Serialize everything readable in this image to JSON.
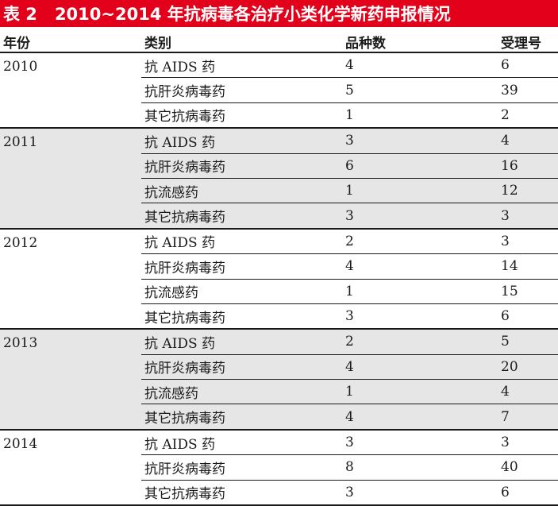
{
  "title": {
    "label": "表 2",
    "text": "2010~2014 年抗病毒各治疗小类化学新药申报情况"
  },
  "headers": {
    "year": "年份",
    "category": "类别",
    "varieties": "品种数",
    "acceptance": "受理号"
  },
  "groups": [
    {
      "year": "2010",
      "rows": [
        {
          "category": "抗 AIDS 药",
          "varieties": "4",
          "acceptance": "6"
        },
        {
          "category": "抗肝炎病毒药",
          "varieties": "5",
          "acceptance": "39"
        },
        {
          "category": "其它抗病毒药",
          "varieties": "1",
          "acceptance": "2"
        }
      ]
    },
    {
      "year": "2011",
      "rows": [
        {
          "category": "抗 AIDS 药",
          "varieties": "3",
          "acceptance": "4"
        },
        {
          "category": "抗肝炎病毒药",
          "varieties": "6",
          "acceptance": "16"
        },
        {
          "category": "抗流感药",
          "varieties": "1",
          "acceptance": "12"
        },
        {
          "category": "其它抗病毒药",
          "varieties": "3",
          "acceptance": "3"
        }
      ]
    },
    {
      "year": "2012",
      "rows": [
        {
          "category": "抗 AIDS 药",
          "varieties": "2",
          "acceptance": "3"
        },
        {
          "category": "抗肝炎病毒药",
          "varieties": "4",
          "acceptance": "14"
        },
        {
          "category": "抗流感药",
          "varieties": "1",
          "acceptance": "15"
        },
        {
          "category": "其它抗病毒药",
          "varieties": "3",
          "acceptance": "6"
        }
      ]
    },
    {
      "year": "2013",
      "rows": [
        {
          "category": "抗 AIDS 药",
          "varieties": "2",
          "acceptance": "5"
        },
        {
          "category": "抗肝炎病毒药",
          "varieties": "4",
          "acceptance": "20"
        },
        {
          "category": "抗流感药",
          "varieties": "1",
          "acceptance": "4"
        },
        {
          "category": "其它抗病毒药",
          "varieties": "4",
          "acceptance": "7"
        }
      ]
    },
    {
      "year": "2014",
      "rows": [
        {
          "category": "抗 AIDS 药",
          "varieties": "3",
          "acceptance": "3"
        },
        {
          "category": "抗肝炎病毒药",
          "varieties": "8",
          "acceptance": "40"
        },
        {
          "category": "其它抗病毒药",
          "varieties": "3",
          "acceptance": "6"
        }
      ]
    }
  ],
  "colors": {
    "title_background": "#e2001a",
    "title_text": "#ffffff",
    "shaded_group": "#e6e6e7",
    "rule": "#1a1a1a"
  }
}
